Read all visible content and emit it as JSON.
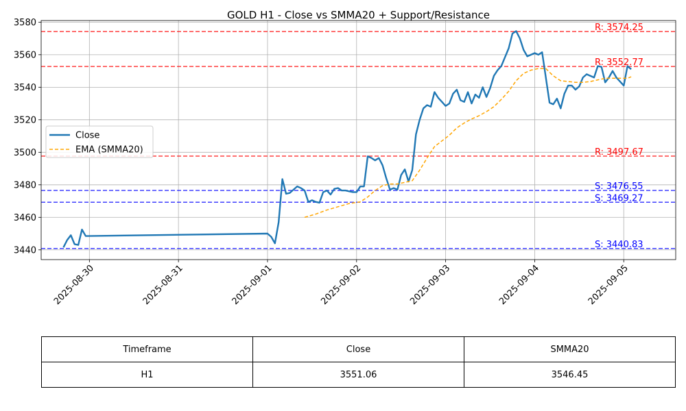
{
  "chart_data": {
    "type": "line",
    "title": "GOLD H1 - Close vs SMMA20 + Support/Resistance",
    "xlabel": "",
    "ylabel": "",
    "x_range": [
      "2025-08-29T11:00",
      "2025-09-05T14:00"
    ],
    "ylim": [
      3434,
      3581
    ],
    "yticks": [
      3440,
      3460,
      3480,
      3500,
      3520,
      3540,
      3560,
      3580
    ],
    "xticks": [
      "2025-08-30",
      "2025-08-31",
      "2025-09-01",
      "2025-09-02",
      "2025-09-03",
      "2025-09-04",
      "2025-09-05"
    ],
    "grid": true,
    "legend_position": "center-left",
    "series": [
      {
        "name": "Close",
        "style": "solid",
        "color": "#1f77b4",
        "points": [
          [
            "2025-08-29T17:00",
            3441.5
          ],
          [
            "2025-08-29T18:00",
            3446.0
          ],
          [
            "2025-08-29T19:00",
            3449.0
          ],
          [
            "2025-08-29T20:00",
            3443.5
          ],
          [
            "2025-08-29T21:00",
            3443.0
          ],
          [
            "2025-08-29T22:00",
            3452.5
          ],
          [
            "2025-08-29T23:00",
            3448.5
          ],
          [
            "2025-09-01T00:00",
            3450.0
          ],
          [
            "2025-09-01T01:00",
            3448.0
          ],
          [
            "2025-09-01T02:00",
            3444.0
          ],
          [
            "2025-09-01T03:00",
            3457.0
          ],
          [
            "2025-09-01T04:00",
            3483.5
          ],
          [
            "2025-09-01T05:00",
            3474.5
          ],
          [
            "2025-09-01T06:00",
            3475.0
          ],
          [
            "2025-09-01T07:00",
            3477.0
          ],
          [
            "2025-09-01T08:00",
            3479.0
          ],
          [
            "2025-09-01T09:00",
            3478.0
          ],
          [
            "2025-09-01T10:00",
            3476.5
          ],
          [
            "2025-09-01T11:00",
            3469.5
          ],
          [
            "2025-09-01T12:00",
            3470.5
          ],
          [
            "2025-09-01T13:00",
            3469.5
          ],
          [
            "2025-09-01T14:00",
            3469.0
          ],
          [
            "2025-09-01T15:00",
            3475.5
          ],
          [
            "2025-09-01T16:00",
            3476.5
          ],
          [
            "2025-09-01T17:00",
            3474.0
          ],
          [
            "2025-09-01T18:00",
            3477.5
          ],
          [
            "2025-09-01T19:00",
            3478.0
          ],
          [
            "2025-09-01T20:00",
            3476.5
          ],
          [
            "2025-09-01T21:00",
            3476.5
          ],
          [
            "2025-09-01T22:00",
            3476.0
          ],
          [
            "2025-09-01T23:00",
            3475.5
          ],
          [
            "2025-09-02T00:00",
            3475.5
          ],
          [
            "2025-09-02T01:00",
            3479.0
          ],
          [
            "2025-09-02T02:00",
            3479.0
          ],
          [
            "2025-09-02T03:00",
            3497.5
          ],
          [
            "2025-09-02T04:00",
            3496.5
          ],
          [
            "2025-09-02T05:00",
            3495.0
          ],
          [
            "2025-09-02T06:00",
            3496.5
          ],
          [
            "2025-09-02T07:00",
            3492.0
          ],
          [
            "2025-09-02T08:00",
            3484.0
          ],
          [
            "2025-09-02T09:00",
            3477.0
          ],
          [
            "2025-09-02T10:00",
            3478.0
          ],
          [
            "2025-09-02T11:00",
            3477.0
          ],
          [
            "2025-09-02T12:00",
            3486.0
          ],
          [
            "2025-09-02T13:00",
            3489.5
          ],
          [
            "2025-09-02T14:00",
            3482.0
          ],
          [
            "2025-09-02T15:00",
            3489.0
          ],
          [
            "2025-09-02T16:00",
            3511.0
          ],
          [
            "2025-09-02T17:00",
            3520.0
          ],
          [
            "2025-09-02T18:00",
            3527.0
          ],
          [
            "2025-09-02T19:00",
            3529.0
          ],
          [
            "2025-09-02T20:00",
            3528.0
          ],
          [
            "2025-09-02T21:00",
            3537.0
          ],
          [
            "2025-09-02T22:00",
            3533.5
          ],
          [
            "2025-09-02T23:00",
            3531.0
          ],
          [
            "2025-09-03T00:00",
            3528.5
          ],
          [
            "2025-09-03T01:00",
            3530.0
          ],
          [
            "2025-09-03T02:00",
            3536.0
          ],
          [
            "2025-09-03T03:00",
            3538.5
          ],
          [
            "2025-09-03T04:00",
            3532.0
          ],
          [
            "2025-09-03T05:00",
            3531.0
          ],
          [
            "2025-09-03T06:00",
            3537.0
          ],
          [
            "2025-09-03T07:00",
            3530.0
          ],
          [
            "2025-09-03T08:00",
            3535.5
          ],
          [
            "2025-09-03T09:00",
            3533.5
          ],
          [
            "2025-09-03T10:00",
            3540.0
          ],
          [
            "2025-09-03T11:00",
            3534.0
          ],
          [
            "2025-09-03T12:00",
            3539.5
          ],
          [
            "2025-09-03T13:00",
            3547.0
          ],
          [
            "2025-09-03T14:00",
            3550.5
          ],
          [
            "2025-09-03T15:00",
            3553.0
          ],
          [
            "2025-09-03T16:00",
            3558.5
          ],
          [
            "2025-09-03T17:00",
            3564.0
          ],
          [
            "2025-09-03T18:00",
            3573.0
          ],
          [
            "2025-09-03T19:00",
            3574.5
          ],
          [
            "2025-09-03T20:00",
            3570.0
          ],
          [
            "2025-09-03T21:00",
            3563.0
          ],
          [
            "2025-09-03T22:00",
            3559.0
          ],
          [
            "2025-09-03T23:00",
            3560.0
          ],
          [
            "2025-09-04T00:00",
            3561.0
          ],
          [
            "2025-09-04T01:00",
            3560.0
          ],
          [
            "2025-09-04T02:00",
            3561.5
          ],
          [
            "2025-09-04T03:00",
            3546.0
          ],
          [
            "2025-09-04T04:00",
            3530.5
          ],
          [
            "2025-09-04T05:00",
            3529.5
          ],
          [
            "2025-09-04T06:00",
            3533.0
          ],
          [
            "2025-09-04T07:00",
            3527.0
          ],
          [
            "2025-09-04T08:00",
            3536.0
          ],
          [
            "2025-09-04T09:00",
            3541.0
          ],
          [
            "2025-09-04T10:00",
            3541.0
          ],
          [
            "2025-09-04T11:00",
            3538.5
          ],
          [
            "2025-09-04T12:00",
            3540.5
          ],
          [
            "2025-09-04T13:00",
            3546.0
          ],
          [
            "2025-09-04T14:00",
            3548.0
          ],
          [
            "2025-09-04T15:00",
            3547.0
          ],
          [
            "2025-09-04T16:00",
            3546.0
          ],
          [
            "2025-09-04T17:00",
            3553.0
          ],
          [
            "2025-09-04T18:00",
            3552.5
          ],
          [
            "2025-09-04T19:00",
            3543.0
          ],
          [
            "2025-09-04T20:00",
            3546.0
          ],
          [
            "2025-09-04T21:00",
            3550.0
          ],
          [
            "2025-09-04T22:00",
            3546.0
          ],
          [
            "2025-09-04T23:00",
            3543.5
          ],
          [
            "2025-09-05T00:00",
            3541.0
          ],
          [
            "2025-09-05T01:00",
            3553.0
          ],
          [
            "2025-09-05T02:00",
            3551.06
          ]
        ]
      },
      {
        "name": "EMA (SMMA20)",
        "style": "dashed",
        "color": "#ffa500",
        "points": [
          [
            "2025-09-01T10:00",
            3460.0
          ],
          [
            "2025-09-01T13:00",
            3462.0
          ],
          [
            "2025-09-01T16:00",
            3464.5
          ],
          [
            "2025-09-01T19:00",
            3466.5
          ],
          [
            "2025-09-01T22:00",
            3468.5
          ],
          [
            "2025-09-02T01:00",
            3469.5
          ],
          [
            "2025-09-02T03:00",
            3472.5
          ],
          [
            "2025-09-02T05:00",
            3476.5
          ],
          [
            "2025-09-02T07:00",
            3479.5
          ],
          [
            "2025-09-02T09:00",
            3480.5
          ],
          [
            "2025-09-02T11:00",
            3480.5
          ],
          [
            "2025-09-02T13:00",
            3481.5
          ],
          [
            "2025-09-02T15:00",
            3482.5
          ],
          [
            "2025-09-02T17:00",
            3489.0
          ],
          [
            "2025-09-02T19:00",
            3496.5
          ],
          [
            "2025-09-02T21:00",
            3503.5
          ],
          [
            "2025-09-02T23:00",
            3507.0
          ],
          [
            "2025-09-03T01:00",
            3510.5
          ],
          [
            "2025-09-03T03:00",
            3515.0
          ],
          [
            "2025-09-03T05:00",
            3518.0
          ],
          [
            "2025-09-03T07:00",
            3520.5
          ],
          [
            "2025-09-03T09:00",
            3522.5
          ],
          [
            "2025-09-03T11:00",
            3525.0
          ],
          [
            "2025-09-03T13:00",
            3528.0
          ],
          [
            "2025-09-03T15:00",
            3532.5
          ],
          [
            "2025-09-03T17:00",
            3537.5
          ],
          [
            "2025-09-03T19:00",
            3544.0
          ],
          [
            "2025-09-03T21:00",
            3548.5
          ],
          [
            "2025-09-03T23:00",
            3550.5
          ],
          [
            "2025-09-04T01:00",
            3551.5
          ],
          [
            "2025-09-04T03:00",
            3551.5
          ],
          [
            "2025-09-04T05:00",
            3547.0
          ],
          [
            "2025-09-04T07:00",
            3544.0
          ],
          [
            "2025-09-04T09:00",
            3543.5
          ],
          [
            "2025-09-04T11:00",
            3543.0
          ],
          [
            "2025-09-04T13:00",
            3543.0
          ],
          [
            "2025-09-04T15:00",
            3543.5
          ],
          [
            "2025-09-04T17:00",
            3544.5
          ],
          [
            "2025-09-04T19:00",
            3545.5
          ],
          [
            "2025-09-04T21:00",
            3545.5
          ],
          [
            "2025-09-04T23:00",
            3545.5
          ],
          [
            "2025-09-05T01:00",
            3545.5
          ],
          [
            "2025-09-05T02:00",
            3546.45
          ]
        ]
      }
    ],
    "levels": [
      {
        "type": "resistance",
        "value": 3574.25,
        "label": "R: 3574.25",
        "color": "#ff0000"
      },
      {
        "type": "resistance",
        "value": 3552.77,
        "label": "R: 3552.77",
        "color": "#ff0000"
      },
      {
        "type": "resistance",
        "value": 3497.67,
        "label": "R: 3497.67",
        "color": "#ff0000"
      },
      {
        "type": "support",
        "value": 3476.55,
        "label": "S: 3476.55",
        "color": "#0000ff"
      },
      {
        "type": "support",
        "value": 3469.27,
        "label": "S: 3469.27",
        "color": "#0000ff"
      },
      {
        "type": "support",
        "value": 3440.83,
        "label": "S: 3440.83",
        "color": "#0000ff"
      }
    ]
  },
  "table": {
    "headers": [
      "Timeframe",
      "Close",
      "SMMA20"
    ],
    "rows": [
      [
        "H1",
        "3551.06",
        "3546.45"
      ]
    ]
  }
}
